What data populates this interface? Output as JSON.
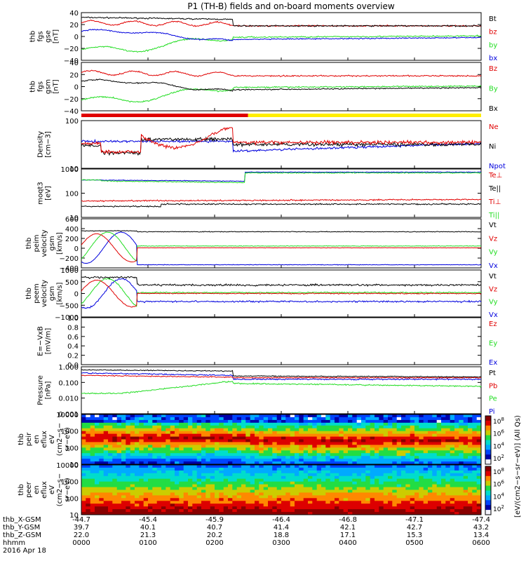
{
  "title": "P1 (TH-B) fields and on-board moments overview",
  "colors": {
    "black": "#000000",
    "red": "#e00000",
    "green": "#22dd22",
    "blue": "#0000dd",
    "yellow": "#ffee00",
    "lightgreen": "#22ee22"
  },
  "chart_data": {
    "type": "line",
    "time_axis": {
      "ticks": [
        "0000",
        "0100",
        "0200",
        "0300",
        "0400",
        "0500",
        "0600"
      ],
      "rows": [
        {
          "label": "thb_X-GSM",
          "values": [
            "-44.7",
            "-45.4",
            "-45.9",
            "-46.4",
            "-46.8",
            "-47.1",
            "-47.4"
          ]
        },
        {
          "label": "thb_Y-GSM",
          "values": [
            "39.7",
            "40.1",
            "40.7",
            "41.4",
            "42.1",
            "42.7",
            "43.2"
          ]
        },
        {
          "label": "thb_Z-GSM",
          "values": [
            "22.0",
            "21.3",
            "20.2",
            "18.8",
            "17.1",
            "15.3",
            "13.4"
          ]
        },
        {
          "label": "hhmm",
          "values": [
            "0000",
            "0100",
            "0200",
            "0300",
            "0400",
            "0500",
            "0600"
          ]
        }
      ],
      "date": "2016 Apr 18"
    },
    "panels": [
      {
        "id": "fgs-gse",
        "ylabel": [
          "thb",
          "fgs",
          "gse",
          "[nT]"
        ],
        "ticks": [
          "40",
          "20",
          "0",
          "−20",
          "−40"
        ],
        "legend": [
          {
            "text": "Bt",
            "color": "#000000"
          },
          {
            "text": "bz",
            "color": "#e00000"
          },
          {
            "text": "by",
            "color": "#22dd22"
          },
          {
            "text": "bx",
            "color": "#0000dd"
          }
        ]
      },
      {
        "id": "fgs-gsm",
        "ylabel": [
          "thb",
          "fgs",
          "gsm",
          "[nT]"
        ],
        "ticks": [
          "40",
          "20",
          "0",
          "−20",
          "−40"
        ],
        "legend": [
          {
            "text": "Bz",
            "color": "#e00000"
          },
          {
            "text": "By",
            "color": "#22dd22"
          },
          {
            "text": "Bx",
            "color": "#000000"
          }
        ]
      },
      {
        "id": "density",
        "ylabel": [
          "Density",
          "[cm−3]"
        ],
        "ticks": [
          "100",
          "10"
        ],
        "legend": [
          {
            "text": "Ne",
            "color": "#e00000"
          },
          {
            "text": "Ni",
            "color": "#000000"
          },
          {
            "text": "Npot",
            "color": "#0000dd"
          }
        ]
      },
      {
        "id": "temp",
        "ylabel": [
          "moqt3",
          "[eV]"
        ],
        "ticks": [
          "1000",
          "100",
          "10"
        ],
        "legend": [
          {
            "text": "Te⊥",
            "color": "#e00000"
          },
          {
            "text": "Te||",
            "color": "#000000"
          },
          {
            "text": "Ti⊥",
            "color": "#e00000"
          },
          {
            "text": "Ti||",
            "color": "#22dd22"
          }
        ]
      },
      {
        "id": "peim",
        "ylabel": [
          "thb",
          "peim",
          "velocity",
          "gsm",
          "[km/s]"
        ],
        "ticks": [
          "600",
          "400",
          "200",
          "0",
          "−200",
          "−400"
        ],
        "legend": [
          {
            "text": "Vt",
            "color": "#000000"
          },
          {
            "text": "Vz",
            "color": "#e00000"
          },
          {
            "text": "Vy",
            "color": "#22dd22"
          },
          {
            "text": "Vx",
            "color": "#0000dd"
          }
        ]
      },
      {
        "id": "peem",
        "ylabel": [
          "thb",
          "peem",
          "velocity",
          "gsm",
          "[km/s]"
        ],
        "ticks": [
          "1000",
          "500",
          "0",
          "−500",
          "−1000"
        ],
        "legend": [
          {
            "text": "Vt",
            "color": "#000000"
          },
          {
            "text": "Vz",
            "color": "#e00000"
          },
          {
            "text": "Vy",
            "color": "#22dd22"
          },
          {
            "text": "Vx",
            "color": "#0000dd"
          }
        ]
      },
      {
        "id": "efield",
        "ylabel": [
          "E=−VxB",
          "[mV/m]"
        ],
        "ticks": [
          "1.0",
          "0.8",
          "0.6",
          "0.4",
          "0.2",
          "0.0"
        ],
        "legend": [
          {
            "text": "Ez",
            "color": "#e00000"
          },
          {
            "text": "Ey",
            "color": "#22dd22"
          },
          {
            "text": "Ex",
            "color": "#0000dd"
          }
        ]
      },
      {
        "id": "pressure",
        "ylabel": [
          "Pressure",
          "[nPa]"
        ],
        "ticks": [
          "1.000",
          "0.100",
          "0.010",
          "0.001"
        ],
        "legend": [
          {
            "text": "Pt",
            "color": "#000000"
          },
          {
            "text": "Pb",
            "color": "#e00000"
          },
          {
            "text": "Pe",
            "color": "#22dd22"
          },
          {
            "text": "Pi",
            "color": "#0000dd"
          }
        ]
      },
      {
        "id": "peir",
        "ylabel": [
          "thb",
          "peir",
          "en",
          "eflux",
          "eV",
          "(cm2−s−",
          "sr−eV)"
        ],
        "ticks": [
          "10000",
          "1000",
          "100",
          "10"
        ]
      },
      {
        "id": "peer",
        "ylabel": [
          "thb",
          "peer",
          "en",
          "eflux",
          "eV",
          "(cm2−s−",
          "sr−eV)"
        ],
        "ticks": [
          "10000",
          "1000",
          "100",
          "10"
        ]
      }
    ],
    "colorbar": {
      "label": "[eV/(cm2−s−sr−eV)] (All Qs)",
      "ticks_upper": [
        "108",
        "106",
        "104",
        "102"
      ],
      "ticks_lower": [
        "108",
        "106",
        "104",
        "102"
      ]
    },
    "mode_bar": [
      {
        "color": "#e00000",
        "until": "0225"
      },
      {
        "color": "#ffee00",
        "from": "0225"
      }
    ]
  }
}
